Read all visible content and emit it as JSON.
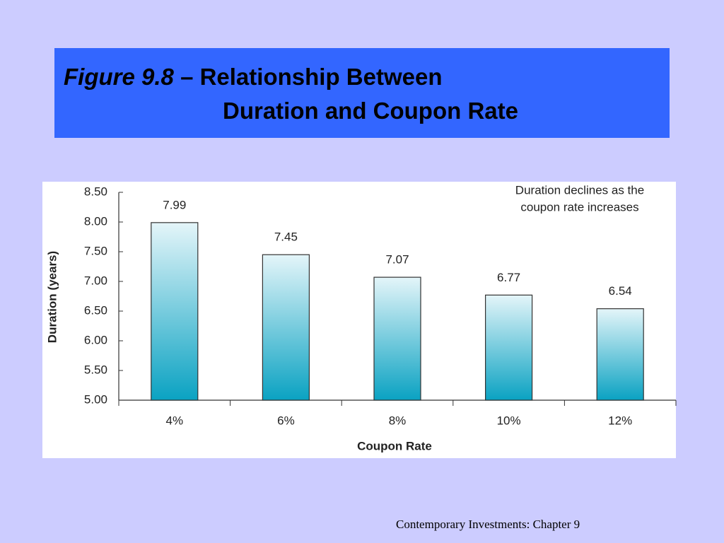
{
  "slide": {
    "figure_label": "Figure 9.8",
    "title_lines": [
      "– Relationship Between",
      "Duration and Coupon Rate"
    ],
    "footer": "Contemporary Investments: Chapter 9"
  },
  "chart_data": {
    "type": "bar",
    "xlabel": "Coupon Rate",
    "ylabel": "Duration (years)",
    "annotation": [
      "Duration declines as the",
      "coupon rate increases"
    ],
    "categories": [
      "4%",
      "6%",
      "8%",
      "10%",
      "12%"
    ],
    "values": [
      7.99,
      7.45,
      7.07,
      6.77,
      6.54
    ],
    "ylim": [
      5,
      8.5
    ],
    "yticks": [
      {
        "value": 5,
        "label": "5.00"
      },
      {
        "value": 5.5,
        "label": "5.50"
      },
      {
        "value": 6,
        "label": "6.00"
      },
      {
        "value": 6.5,
        "label": "6.50"
      },
      {
        "value": 7,
        "label": "7.00"
      },
      {
        "value": 7.5,
        "label": "7.50"
      },
      {
        "value": 8,
        "label": "8.00"
      },
      {
        "value": 8.5,
        "label": "8.50"
      }
    ],
    "color": "#0aa2c2"
  }
}
